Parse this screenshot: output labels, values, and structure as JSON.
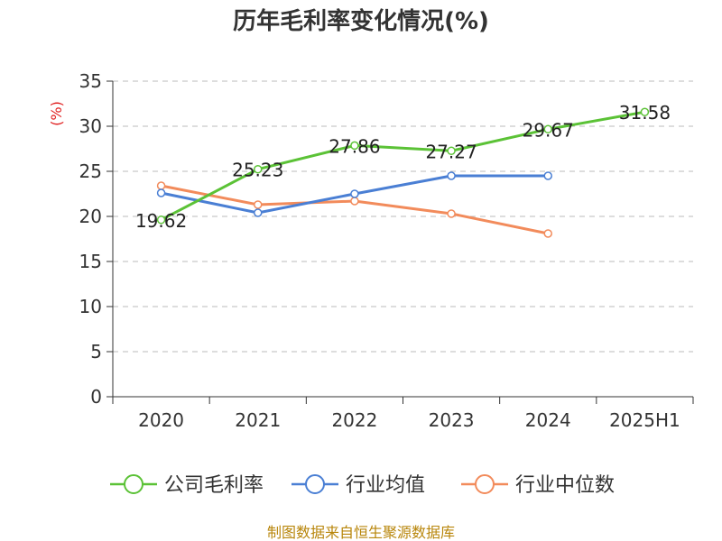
{
  "title": "历年毛利率变化情况(%)",
  "source": "制图数据来自恒生聚源数据库",
  "chart_data": {
    "type": "line",
    "title": "历年毛利率变化情况(%)",
    "ylabel": "(%)",
    "ylim": [
      0,
      35
    ],
    "yticks": [
      0,
      5,
      10,
      15,
      20,
      25,
      30,
      35
    ],
    "grid": true,
    "legend": "bottom",
    "categories": [
      "2020",
      "2021",
      "2022",
      "2023",
      "2024",
      "2025H1"
    ],
    "series": [
      {
        "name": "公司毛利率",
        "color": "#5bc236",
        "values": [
          19.62,
          25.23,
          27.86,
          27.27,
          29.67,
          31.58
        ],
        "labels": [
          "19.62",
          "25.23",
          "27.86",
          "27.27",
          "29.67",
          "31.58"
        ]
      },
      {
        "name": "行业均值",
        "color": "#4a7fd4",
        "values": [
          22.6,
          20.4,
          22.5,
          24.5,
          24.5,
          null
        ]
      },
      {
        "name": "行业中位数",
        "color": "#f28b5b",
        "values": [
          23.4,
          21.3,
          21.7,
          20.3,
          18.1,
          null
        ]
      }
    ]
  }
}
